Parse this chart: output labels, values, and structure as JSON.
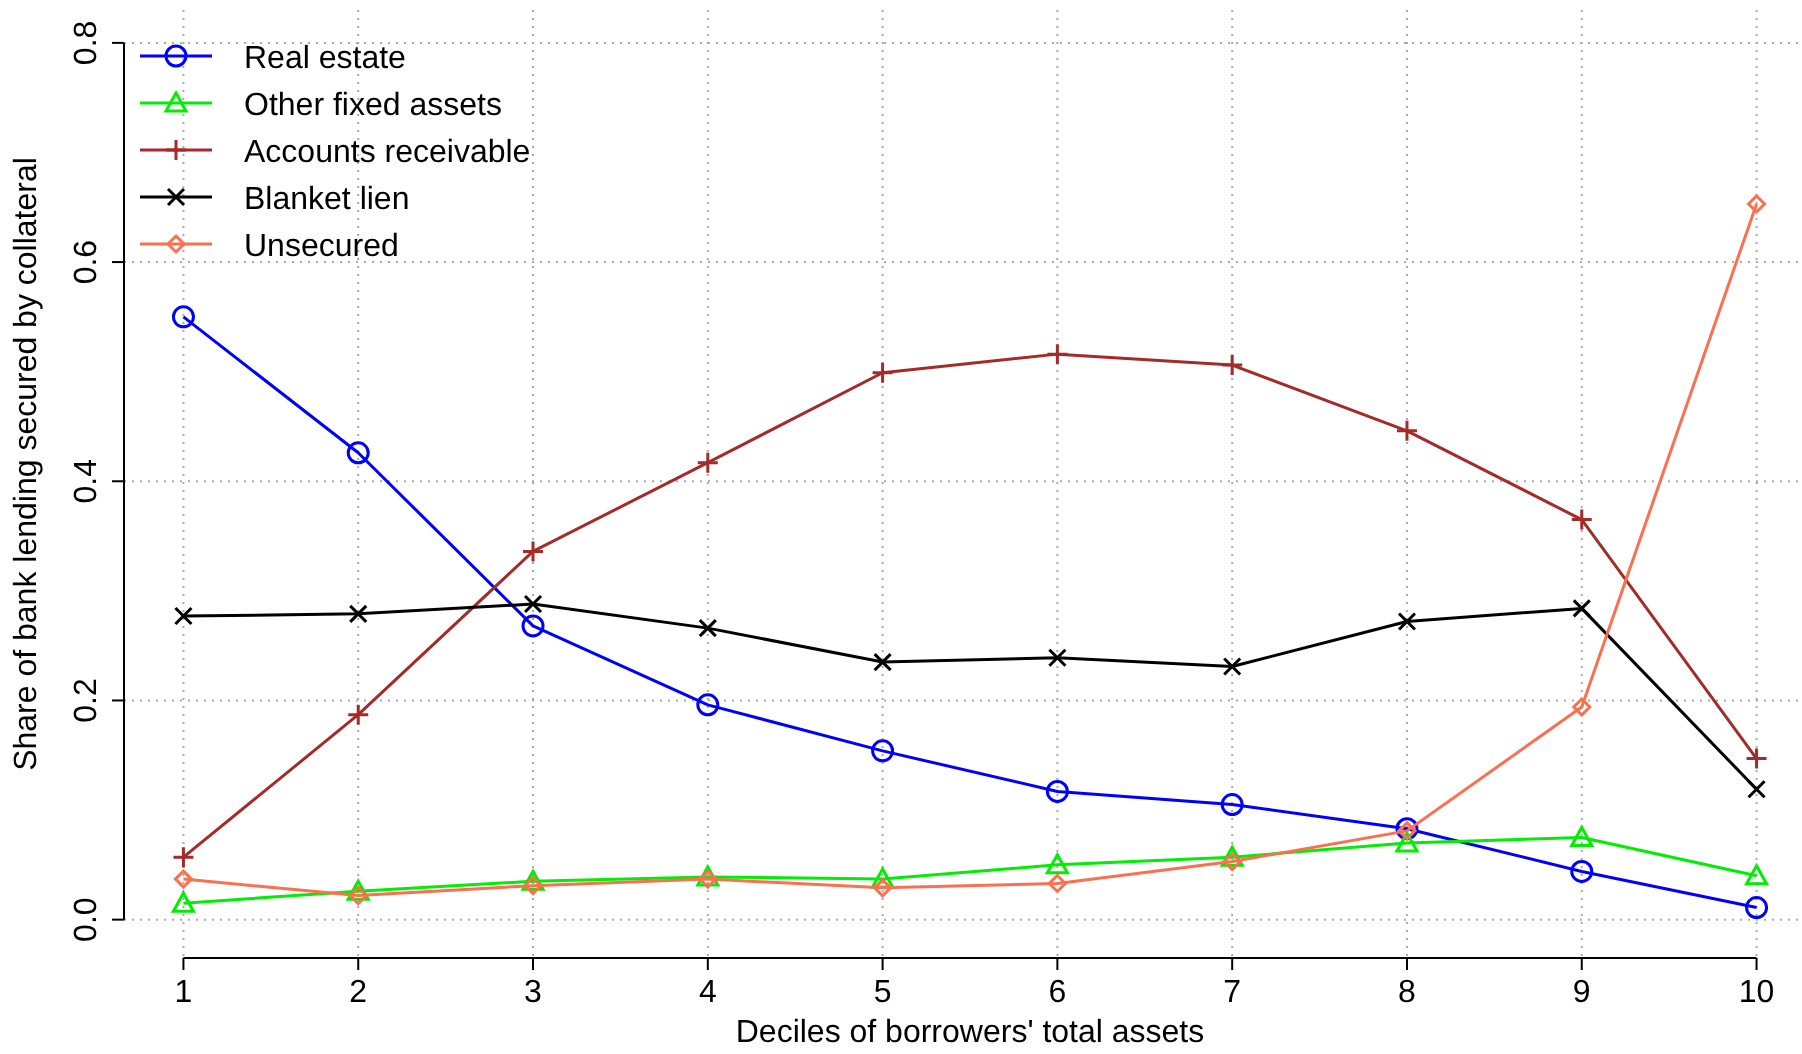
{
  "chart_data": {
    "type": "line",
    "xlabel": "Deciles of borrowers' total assets",
    "ylabel": "Share of bank lending secured by collateral",
    "x": [
      1,
      2,
      3,
      4,
      5,
      6,
      7,
      8,
      9,
      10
    ],
    "xlim": [
      0.66,
      10.26
    ],
    "xticks": [
      1,
      2,
      3,
      4,
      5,
      6,
      7,
      8,
      9,
      10
    ],
    "ylim": [
      -0.035,
      0.83
    ],
    "yticks": [
      {
        "value": 0,
        "label": "0.0"
      },
      0.2,
      0.4,
      0.6,
      0.8
    ],
    "grid": true,
    "legend": "top left",
    "line_style": "solid",
    "series": [
      {
        "name": "Real estate",
        "color": "#0000ff",
        "marker": "circle",
        "values": [
          0.55,
          0.426,
          0.268,
          0.196,
          0.154,
          0.117,
          0.105,
          0.083,
          0.044,
          0.011
        ]
      },
      {
        "name": "Other fixed assets",
        "color": "#00ee00",
        "marker": "triangle",
        "values": [
          0.015,
          0.026,
          0.035,
          0.039,
          0.037,
          0.05,
          0.057,
          0.07,
          0.075,
          0.04
        ]
      },
      {
        "name": "Accounts receivable",
        "color": "#a52a2a",
        "marker": "plus",
        "values": [
          0.057,
          0.187,
          0.336,
          0.417,
          0.499,
          0.516,
          0.506,
          0.446,
          0.365,
          0.147
        ]
      },
      {
        "name": "Blanket lien",
        "color": "#000000",
        "marker": "cross",
        "values": [
          0.277,
          0.279,
          0.288,
          0.266,
          0.235,
          0.239,
          0.231,
          0.272,
          0.284,
          0.119
        ]
      },
      {
        "name": "Unsecured",
        "color": "#fa7050",
        "marker": "diamond",
        "values": [
          0.037,
          0.022,
          0.031,
          0.037,
          0.029,
          0.033,
          0.053,
          0.081,
          0.194,
          0.653
        ]
      }
    ]
  }
}
